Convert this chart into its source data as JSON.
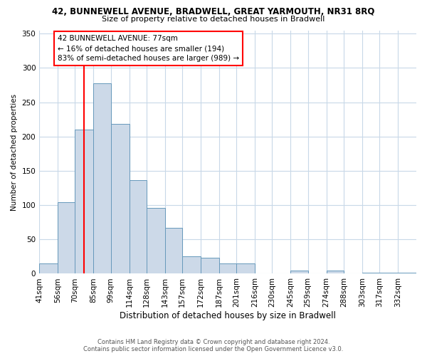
{
  "title": "42, BUNNEWELL AVENUE, BRADWELL, GREAT YARMOUTH, NR31 8RQ",
  "subtitle": "Size of property relative to detached houses in Bradwell",
  "xlabel": "Distribution of detached houses by size in Bradwell",
  "ylabel": "Number of detached properties",
  "bin_labels": [
    "41sqm",
    "56sqm",
    "70sqm",
    "85sqm",
    "99sqm",
    "114sqm",
    "128sqm",
    "143sqm",
    "157sqm",
    "172sqm",
    "187sqm",
    "201sqm",
    "216sqm",
    "230sqm",
    "245sqm",
    "259sqm",
    "274sqm",
    "288sqm",
    "303sqm",
    "317sqm",
    "332sqm"
  ],
  "bin_edges": [
    41,
    56,
    70,
    85,
    99,
    114,
    128,
    143,
    157,
    172,
    187,
    201,
    216,
    230,
    245,
    259,
    274,
    288,
    303,
    317,
    332
  ],
  "bar_heights": [
    15,
    104,
    210,
    278,
    219,
    136,
    96,
    67,
    25,
    23,
    15,
    15,
    0,
    0,
    5,
    0,
    5,
    0,
    2,
    2,
    2
  ],
  "bar_color": "#ccd9e8",
  "bar_edgecolor": "#6699bb",
  "property_line_x": 77,
  "property_line_color": "red",
  "annotation_text": "42 BUNNEWELL AVENUE: 77sqm\n← 16% of detached houses are smaller (194)\n83% of semi-detached houses are larger (989) →",
  "annotation_box_edgecolor": "red",
  "annotation_box_facecolor": "white",
  "ylim": [
    0,
    355
  ],
  "yticks": [
    0,
    50,
    100,
    150,
    200,
    250,
    300,
    350
  ],
  "footer_line1": "Contains HM Land Registry data © Crown copyright and database right 2024.",
  "footer_line2": "Contains public sector information licensed under the Open Government Licence v3.0.",
  "background_color": "#ffffff",
  "grid_color": "#c8d8e8"
}
